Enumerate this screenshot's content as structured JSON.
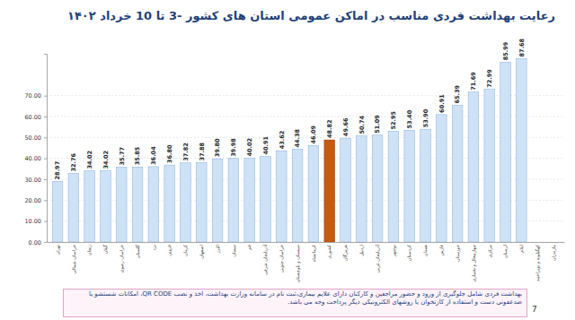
{
  "chart_data": {
    "type": "bar",
    "title": "رعایت بهداشت فردی مناسب در اماکن عمومی استان های کشور -3 تا 10 خرداد ۱۴۰۲",
    "categories": [
      "تهران",
      "خراسان شمالی",
      "زنجان",
      "گیلان",
      "خراسان رضوی",
      "گلستان",
      "یزد",
      "قزوین",
      "کرمان",
      "اصفهان",
      "البرز",
      "سمنان",
      "قم",
      "آذربایجان شرقی",
      "خراسان جنوبی",
      "سیستان و بلوچستان",
      "کرمانشاه",
      "کشوری",
      "هرمزگان",
      "اردبیل",
      "آذربایجان غربی",
      "بوشهر",
      "کردستان",
      "همدان",
      "فارس",
      "خوزستان",
      "چهارمحال و بختیاری",
      "مرکزی",
      "لرستان",
      "ایلام",
      "کهگیلویه و بویراحمد",
      "مازندران"
    ],
    "values": [
      28.97,
      32.76,
      34.02,
      34.02,
      35.77,
      35.85,
      36.04,
      36.8,
      37.82,
      37.88,
      39.8,
      39.98,
      40.02,
      40.91,
      43.62,
      44.38,
      46.09,
      48.82,
      49.66,
      50.74,
      51.09,
      52.95,
      53.4,
      53.9,
      60.91,
      65.39,
      71.69,
      72.99,
      85.99,
      87.68,
      null,
      null
    ],
    "value_labels": [
      "28.97",
      "32.76",
      "34.02",
      "34.02",
      "35.77",
      "35.85",
      "36.04",
      "36.80",
      "37.82",
      "37.88",
      "39.80",
      "39.98",
      "40.02",
      "40.91",
      "43.62",
      "44.38",
      "46.09",
      "48.82",
      "49.66",
      "50.74",
      "51.09",
      "52.95",
      "53.40",
      "53.90",
      "60.91",
      "65.39",
      "71.69",
      "72.99",
      "85.99",
      "87.68",
      null,
      null
    ],
    "color": "#cfe2f5",
    "colors": [
      "#cfe2f5",
      "#cfe2f5",
      "#cfe2f5",
      "#cfe2f5",
      "#cfe2f5",
      "#cfe2f5",
      "#cfe2f5",
      "#cfe2f5",
      "#cfe2f5",
      "#cfe2f5",
      "#cfe2f5",
      "#cfe2f5",
      "#cfe2f5",
      "#cfe2f5",
      "#cfe2f5",
      "#cfe2f5",
      "#cfe2f5",
      "#c55a11",
      "#cfe2f5",
      "#cfe2f5",
      "#cfe2f5",
      "#cfe2f5",
      "#cfe2f5",
      "#cfe2f5",
      "#cfe2f5",
      "#cfe2f5",
      "#cfe2f5",
      "#cfe2f5",
      "#cfe2f5",
      "#cfe2f5",
      "#cfe2f5",
      "#cfe2f5"
    ],
    "ylim": [
      0,
      90
    ],
    "yticks": [
      {
        "value": 0,
        "label": "0.00"
      },
      {
        "value": 10,
        "label": "10.00"
      },
      {
        "value": 20,
        "label": "20.00"
      },
      {
        "value": 30,
        "label": "30.00"
      },
      {
        "value": 40,
        "label": "40.00"
      },
      {
        "value": 50,
        "label": "50.00"
      },
      {
        "value": 60,
        "label": "60.00"
      },
      {
        "value": 70,
        "label": "70.00"
      }
    ],
    "grid": true,
    "data_labels": true,
    "annotations": [
      "بهداشت فردی شامل جلوگیری از ورود و حضور مراجعین و کارکنان دارای علایم بیماری،ثبت نام در سامانه وزارت بهداشت، اخذ و نصب QR CODE، امکانات شستشو یا ضدعفونی دست و استفاده از کارتخوان یا روشهای الکترونیکی دیگر پرداخت وجه می باشد.",
      "7"
    ]
  }
}
